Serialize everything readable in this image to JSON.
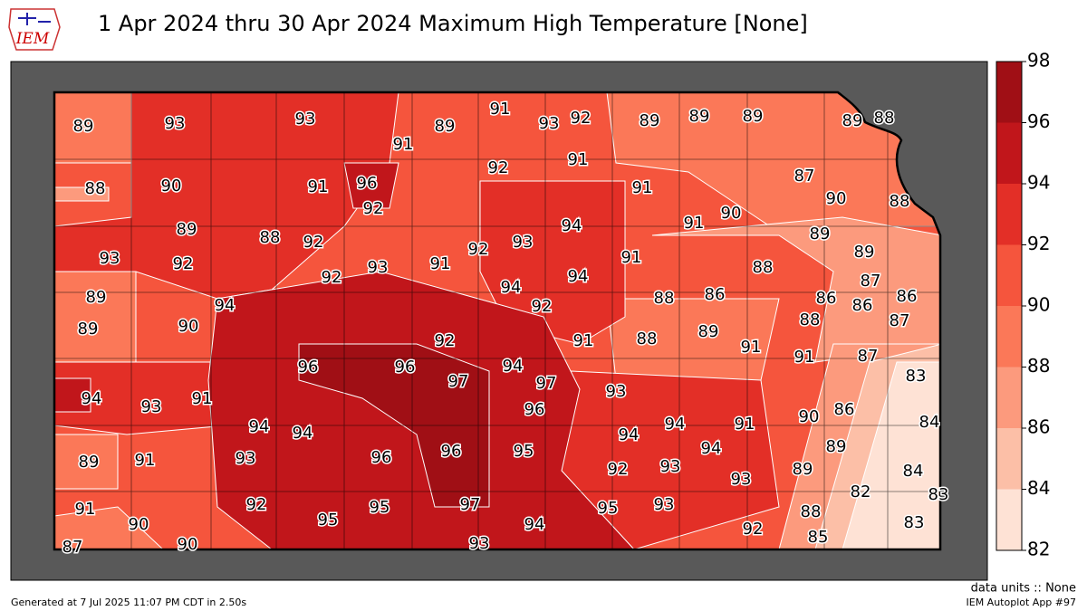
{
  "header": {
    "title": "1 Apr 2024 thru 30 Apr 2024 Maximum High Temperature [None]",
    "logo": "IEM"
  },
  "map": {
    "stations": [
      89,
      93,
      93,
      91,
      89,
      91,
      93,
      92,
      89,
      89,
      89,
      89,
      88,
      88,
      90,
      91,
      96,
      92,
      92,
      91,
      91,
      87,
      90,
      88,
      89,
      88,
      92,
      91,
      90,
      93,
      92,
      93,
      91,
      92,
      93,
      94,
      91,
      89,
      89,
      88,
      92,
      94,
      94,
      92,
      89,
      94,
      88,
      86,
      87,
      86,
      86,
      86,
      89,
      90,
      92,
      91,
      88,
      89,
      91,
      88,
      87,
      96,
      96,
      94,
      97,
      97,
      91,
      87,
      83,
      94,
      93,
      91,
      93,
      96,
      90,
      86,
      84,
      94,
      94,
      94,
      94,
      91,
      89,
      95,
      96,
      96,
      89,
      91,
      93,
      94,
      92,
      93,
      93,
      89,
      84,
      82,
      83,
      91,
      90,
      92,
      95,
      95,
      97,
      94,
      95,
      93,
      92,
      88,
      83,
      87,
      90,
      93,
      85
    ]
  },
  "colorbar": {
    "ticks": [
      82,
      84,
      86,
      88,
      90,
      92,
      94,
      96,
      98
    ],
    "colors": [
      "#fee2d5",
      "#fcbfa7",
      "#fc9a7d",
      "#fb7858",
      "#f5553d",
      "#e32f27",
      "#c1161b",
      "#a00f15"
    ]
  },
  "footer": {
    "units": "data units :: None",
    "generated": "Generated at 7 Jul 2025 11:07 PM CDT in 2.50s",
    "app": "IEM Autoplot App #97"
  }
}
